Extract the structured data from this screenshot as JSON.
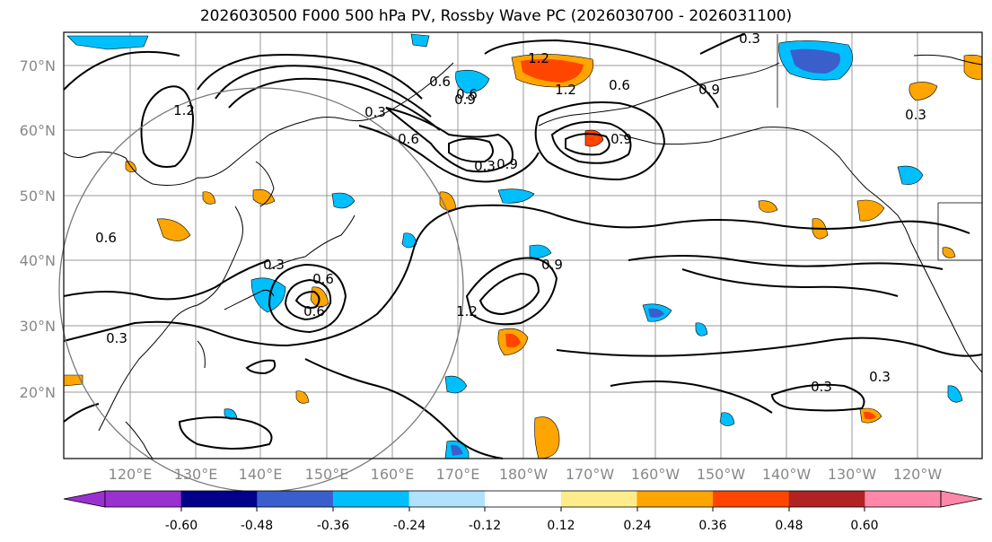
{
  "title": "2026030500 F000 500 hPa PV, Rossby Wave PC (2026030700 - 2026031100)",
  "colors": {
    "land_outline": "#000000",
    "grid": "#999999",
    "circle": "#777777"
  },
  "lat_labels": [
    "70°N",
    "60°N",
    "50°N",
    "40°N",
    "30°N",
    "20°N"
  ],
  "lon_labels": [
    "120°E",
    "130°E",
    "140°E",
    "150°E",
    "160°E",
    "170°E",
    "180°W",
    "170°W",
    "160°W",
    "150°W",
    "140°W",
    "130°W",
    "120°W"
  ],
  "contour_labels": [
    "1.2",
    "0.6",
    "0.9",
    "0.3",
    "0.6",
    "0.9",
    "0.6",
    "0.3",
    "1.2",
    "0.9",
    "0.6",
    "0.3",
    "1.2",
    "0.9",
    "1.2",
    "0.9",
    "0.6",
    "0.6",
    "0.3",
    "0.3",
    "0.3",
    "0.3",
    "0.3",
    "0.6"
  ],
  "colorbar": {
    "ticks": [
      "-0.60",
      "-0.48",
      "-0.36",
      "-0.24",
      "-0.12",
      "0.12",
      "0.24",
      "0.36",
      "0.48",
      "0.60"
    ],
    "colors": [
      "#9b30d0",
      "#00008b",
      "#3a5fcd",
      "#00bfff",
      "#b0e2ff",
      "#ffffff",
      "#ffec8b",
      "#ffa500",
      "#ff4500",
      "#b22222",
      "#ff88aa",
      "#ff88aa"
    ]
  }
}
